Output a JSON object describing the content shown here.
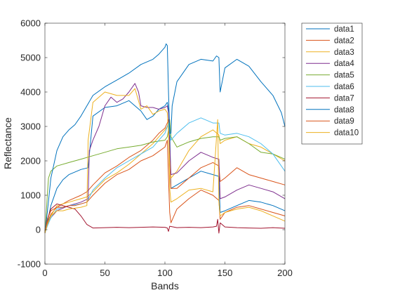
{
  "chart_data": {
    "type": "line",
    "title": "",
    "xlabel": "Bands",
    "ylabel": "Reflectance",
    "xlim": [
      0,
      200
    ],
    "ylim": [
      -1000,
      6000
    ],
    "x_ticks": [
      "0",
      "50",
      "100",
      "150",
      "200"
    ],
    "y_ticks": [
      "-1000",
      "0",
      "1000",
      "2000",
      "3000",
      "4000",
      "5000",
      "6000"
    ],
    "grid": false,
    "legend_position": "outside-top-right",
    "series": [
      {
        "name": "data1",
        "color": "#0072BD",
        "x": [
          0,
          2,
          5,
          10,
          15,
          20,
          30,
          36,
          40,
          50,
          60,
          70,
          80,
          85,
          90,
          95,
          100,
          102,
          103,
          104,
          105,
          110,
          120,
          130,
          140,
          145,
          146,
          150,
          160,
          170,
          180,
          190,
          200
        ],
        "y": [
          -100,
          200,
          700,
          1200,
          1450,
          1600,
          1750,
          1800,
          3300,
          3550,
          3600,
          3750,
          3450,
          3200,
          3300,
          3500,
          3600,
          3700,
          3500,
          2900,
          1200,
          1300,
          1500,
          1700,
          1600,
          1550,
          500,
          550,
          700,
          850,
          800,
          700,
          550
        ]
      },
      {
        "name": "data2",
        "color": "#D95319",
        "x": [
          0,
          2,
          5,
          10,
          20,
          30,
          35,
          40,
          50,
          60,
          70,
          75,
          80,
          90,
          95,
          100,
          102,
          103,
          104,
          105,
          110,
          120,
          130,
          140,
          145,
          146,
          150,
          160,
          170,
          180,
          190,
          200
        ],
        "y": [
          -100,
          200,
          450,
          650,
          850,
          1000,
          1100,
          1300,
          1650,
          1850,
          2100,
          2200,
          2300,
          2600,
          2800,
          2950,
          3100,
          3200,
          2000,
          1200,
          1200,
          1500,
          1800,
          1950,
          1850,
          1400,
          1500,
          1800,
          1600,
          1500,
          1400,
          1300
        ]
      },
      {
        "name": "data3",
        "color": "#EDB120",
        "x": [
          0,
          2,
          5,
          10,
          20,
          30,
          35,
          40,
          50,
          60,
          70,
          75,
          80,
          90,
          95,
          100,
          102,
          103,
          104,
          105,
          110,
          120,
          130,
          140,
          145,
          146,
          150,
          160,
          170,
          180,
          190,
          200
        ],
        "y": [
          -100,
          150,
          400,
          700,
          800,
          900,
          950,
          1100,
          1450,
          1650,
          1900,
          2050,
          2200,
          2500,
          2700,
          2900,
          3000,
          3100,
          2000,
          1500,
          1700,
          2300,
          2700,
          2900,
          2750,
          2500,
          2600,
          2700,
          2500,
          2400,
          2200,
          2000
        ]
      },
      {
        "name": "data4",
        "color": "#7E2F8E",
        "x": [
          0,
          2,
          5,
          10,
          20,
          30,
          36,
          37,
          40,
          45,
          50,
          55,
          60,
          65,
          70,
          75,
          78,
          80,
          85,
          90,
          95,
          100,
          102,
          103,
          104,
          105,
          110,
          120,
          130,
          140,
          145,
          146,
          150,
          160,
          170,
          180,
          190,
          200
        ],
        "y": [
          -100,
          150,
          350,
          550,
          700,
          800,
          900,
          2300,
          2600,
          3000,
          3600,
          3850,
          3700,
          3800,
          4000,
          4250,
          4000,
          3600,
          3550,
          3550,
          3500,
          3550,
          3600,
          3400,
          2500,
          1600,
          1650,
          2000,
          2250,
          2100,
          2050,
          900,
          950,
          1150,
          1300,
          1200,
          1100,
          900
        ]
      },
      {
        "name": "data5",
        "color": "#77AC30",
        "x": [
          0,
          1,
          2,
          3,
          5,
          10,
          20,
          30,
          40,
          50,
          60,
          70,
          80,
          90,
          100,
          102,
          103,
          104,
          105,
          110,
          120,
          130,
          140,
          145,
          146,
          150,
          160,
          170,
          180,
          190,
          200
        ],
        "y": [
          -100,
          400,
          1000,
          1500,
          1700,
          1850,
          1950,
          2050,
          2150,
          2250,
          2350,
          2400,
          2450,
          2550,
          2600,
          2700,
          2900,
          3200,
          2700,
          2400,
          2550,
          2650,
          2700,
          2700,
          2600,
          2650,
          2700,
          2500,
          2250,
          2200,
          2050
        ]
      },
      {
        "name": "data6",
        "color": "#4DBEEE",
        "x": [
          0,
          2,
          5,
          10,
          20,
          30,
          35,
          40,
          50,
          60,
          70,
          80,
          90,
          95,
          100,
          102,
          103,
          104,
          105,
          110,
          120,
          130,
          140,
          145,
          146,
          150,
          160,
          170,
          180,
          190,
          200
        ],
        "y": [
          -100,
          100,
          350,
          600,
          700,
          750,
          800,
          1150,
          1500,
          1800,
          2000,
          2200,
          2400,
          2600,
          2800,
          3000,
          3100,
          2800,
          2600,
          2800,
          3100,
          3250,
          3100,
          3100,
          2800,
          2750,
          2800,
          2700,
          2500,
          2200,
          1700
        ]
      },
      {
        "name": "data7",
        "color": "#A2142F",
        "x": [
          0,
          2,
          5,
          10,
          15,
          20,
          25,
          30,
          35,
          40,
          50,
          60,
          70,
          80,
          90,
          100,
          102,
          103,
          104,
          110,
          120,
          130,
          140,
          143,
          144,
          145,
          146,
          150,
          160,
          170,
          180,
          190,
          200
        ],
        "y": [
          -50,
          300,
          600,
          750,
          700,
          650,
          600,
          400,
          150,
          50,
          60,
          70,
          60,
          70,
          80,
          70,
          50,
          -50,
          100,
          60,
          70,
          60,
          80,
          100,
          300,
          -100,
          200,
          80,
          60,
          50,
          40,
          60,
          40
        ]
      },
      {
        "name": "data8",
        "color": "#0072BD",
        "x": [
          0,
          2,
          5,
          10,
          15,
          20,
          25,
          30,
          40,
          50,
          60,
          70,
          80,
          90,
          95,
          100,
          101,
          102,
          103,
          104,
          105,
          106,
          110,
          120,
          130,
          140,
          143,
          145,
          146,
          150,
          160,
          170,
          180,
          190,
          197,
          200
        ],
        "y": [
          -100,
          500,
          1500,
          2300,
          2700,
          2900,
          3050,
          3300,
          3900,
          4150,
          4350,
          4550,
          4800,
          4950,
          5100,
          5300,
          5400,
          5350,
          4000,
          2800,
          2800,
          3600,
          4300,
          4800,
          4950,
          4900,
          5050,
          5000,
          4000,
          4700,
          4950,
          4750,
          4300,
          3900,
          3400,
          3000
        ]
      },
      {
        "name": "data9",
        "color": "#D95319",
        "x": [
          0,
          2,
          5,
          10,
          15,
          20,
          25,
          30,
          35,
          40,
          50,
          60,
          70,
          80,
          90,
          100,
          102,
          103,
          104,
          105,
          110,
          120,
          130,
          140,
          145,
          146,
          150,
          160,
          170,
          180,
          190,
          200
        ],
        "y": [
          -100,
          300,
          550,
          650,
          650,
          700,
          700,
          750,
          800,
          1000,
          1350,
          1600,
          1750,
          2000,
          2150,
          2400,
          2600,
          1500,
          500,
          200,
          600,
          900,
          1150,
          1000,
          850,
          300,
          500,
          650,
          700,
          600,
          500,
          400
        ]
      },
      {
        "name": "data10",
        "color": "#EDB120",
        "x": [
          0,
          2,
          5,
          10,
          15,
          20,
          30,
          35,
          36,
          40,
          50,
          60,
          70,
          75,
          80,
          85,
          90,
          95,
          100,
          102,
          103,
          104,
          105,
          110,
          120,
          130,
          140,
          144,
          145,
          146,
          150,
          160,
          170,
          180,
          190,
          200
        ],
        "y": [
          -100,
          150,
          400,
          550,
          550,
          600,
          650,
          700,
          2600,
          3700,
          4000,
          3900,
          3900,
          4100,
          3500,
          3600,
          3350,
          3450,
          3500,
          3400,
          2800,
          1200,
          800,
          900,
          1150,
          1200,
          1100,
          3200,
          800,
          400,
          500,
          600,
          650,
          550,
          400,
          250
        ]
      }
    ]
  }
}
